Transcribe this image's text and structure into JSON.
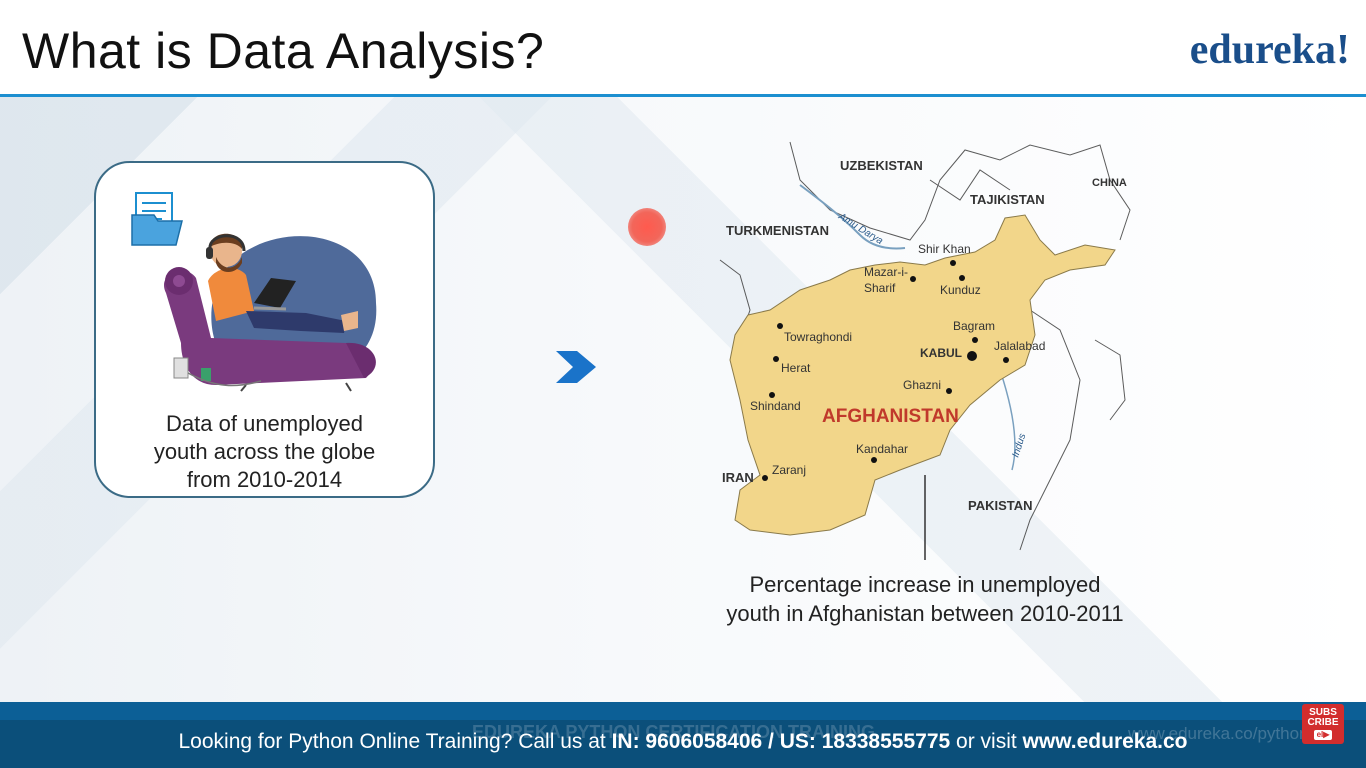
{
  "slide": {
    "title": "What is Data Analysis?",
    "logo": "edureka!"
  },
  "card": {
    "text_lines": [
      "Data of unemployed",
      "youth across the globe",
      "from 2010-2014"
    ],
    "icons": [
      "document-folder-icon",
      "person-on-couch-with-laptop-illustration"
    ]
  },
  "map": {
    "country_label": "AFGHANISTAN",
    "neighbors": [
      "UZBEKISTAN",
      "TAJIKISTAN",
      "CHINA",
      "TURKMENISTAN",
      "IRAN",
      "PAKISTAN"
    ],
    "rivers": [
      "Amu Darya",
      "Indus"
    ],
    "cities": [
      "Shir Khan",
      "Mazar-i-",
      "Sharif",
      "Kunduz",
      "Towraghondi",
      "Bagram",
      "KABUL",
      "Jalalabad",
      "Herat",
      "Ghazni",
      "Shindand",
      "Kandahar",
      "Zaranj"
    ],
    "caption_lines": [
      "Percentage increase in unemployed",
      "youth in Afghanistan between 2010-2011"
    ],
    "colors": {
      "country_fill": "#f2d68a",
      "country_label": "#c0392b"
    }
  },
  "footer": {
    "ghost_text": "EDUREKA PYTHON CERTIFICATION TRAINING",
    "ghost_url": "www.edureka.co/python",
    "prefix": "Looking for Python Online Training? Call us at ",
    "phones": "IN: 9606058406 / US: 18338555775",
    "middle": " or visit ",
    "website": "www.edureka.co",
    "subscribe_line1": "SUBS",
    "subscribe_line2": "CRIBE",
    "subscribe_badge": "el▶"
  },
  "colors": {
    "accent_blue": "#1c8fd0",
    "footer_blue": "#0b4f7a",
    "logo_blue": "#1a4e8a"
  }
}
